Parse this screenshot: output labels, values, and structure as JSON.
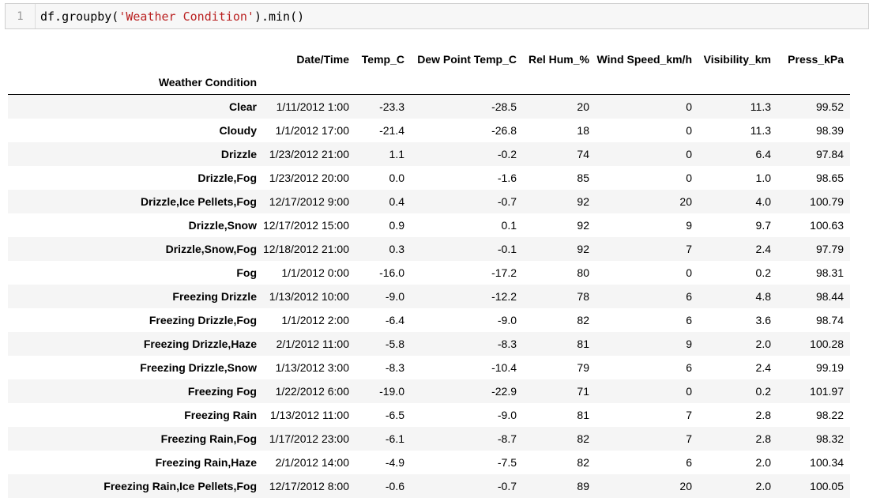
{
  "code_cell": {
    "line_number": "1",
    "code_prefix": "df.groupby(",
    "code_string": "'Weather Condition'",
    "code_suffix": ").min()"
  },
  "table": {
    "index_name": "Weather Condition",
    "columns": [
      "Date/Time",
      "Temp_C",
      "Dew Point Temp_C",
      "Rel Hum_%",
      "Wind Speed_km/h",
      "Visibility_km",
      "Press_kPa"
    ],
    "rows": [
      {
        "index": "Clear",
        "values": [
          "1/11/2012 1:00",
          "-23.3",
          "-28.5",
          "20",
          "0",
          "11.3",
          "99.52"
        ]
      },
      {
        "index": "Cloudy",
        "values": [
          "1/1/2012 17:00",
          "-21.4",
          "-26.8",
          "18",
          "0",
          "11.3",
          "98.39"
        ]
      },
      {
        "index": "Drizzle",
        "values": [
          "1/23/2012 21:00",
          "1.1",
          "-0.2",
          "74",
          "0",
          "6.4",
          "97.84"
        ]
      },
      {
        "index": "Drizzle,Fog",
        "values": [
          "1/23/2012 20:00",
          "0.0",
          "-1.6",
          "85",
          "0",
          "1.0",
          "98.65"
        ]
      },
      {
        "index": "Drizzle,Ice Pellets,Fog",
        "values": [
          "12/17/2012 9:00",
          "0.4",
          "-0.7",
          "92",
          "20",
          "4.0",
          "100.79"
        ]
      },
      {
        "index": "Drizzle,Snow",
        "values": [
          "12/17/2012 15:00",
          "0.9",
          "0.1",
          "92",
          "9",
          "9.7",
          "100.63"
        ]
      },
      {
        "index": "Drizzle,Snow,Fog",
        "values": [
          "12/18/2012 21:00",
          "0.3",
          "-0.1",
          "92",
          "7",
          "2.4",
          "97.79"
        ]
      },
      {
        "index": "Fog",
        "values": [
          "1/1/2012 0:00",
          "-16.0",
          "-17.2",
          "80",
          "0",
          "0.2",
          "98.31"
        ]
      },
      {
        "index": "Freezing Drizzle",
        "values": [
          "1/13/2012 10:00",
          "-9.0",
          "-12.2",
          "78",
          "6",
          "4.8",
          "98.44"
        ]
      },
      {
        "index": "Freezing Drizzle,Fog",
        "values": [
          "1/1/2012 2:00",
          "-6.4",
          "-9.0",
          "82",
          "6",
          "3.6",
          "98.74"
        ]
      },
      {
        "index": "Freezing Drizzle,Haze",
        "values": [
          "2/1/2012 11:00",
          "-5.8",
          "-8.3",
          "81",
          "9",
          "2.0",
          "100.28"
        ]
      },
      {
        "index": "Freezing Drizzle,Snow",
        "values": [
          "1/13/2012 3:00",
          "-8.3",
          "-10.4",
          "79",
          "6",
          "2.4",
          "99.19"
        ]
      },
      {
        "index": "Freezing Fog",
        "values": [
          "1/22/2012 6:00",
          "-19.0",
          "-22.9",
          "71",
          "0",
          "0.2",
          "101.97"
        ]
      },
      {
        "index": "Freezing Rain",
        "values": [
          "1/13/2012 11:00",
          "-6.5",
          "-9.0",
          "81",
          "7",
          "2.8",
          "98.22"
        ]
      },
      {
        "index": "Freezing Rain,Fog",
        "values": [
          "1/17/2012 23:00",
          "-6.1",
          "-8.7",
          "82",
          "7",
          "2.8",
          "98.32"
        ]
      },
      {
        "index": "Freezing Rain,Haze",
        "values": [
          "2/1/2012 14:00",
          "-4.9",
          "-7.5",
          "82",
          "6",
          "2.0",
          "100.34"
        ]
      },
      {
        "index": "Freezing Rain,Ice Pellets,Fog",
        "values": [
          "12/17/2012 8:00",
          "-0.6",
          "-0.7",
          "89",
          "20",
          "2.0",
          "100.05"
        ]
      }
    ]
  }
}
